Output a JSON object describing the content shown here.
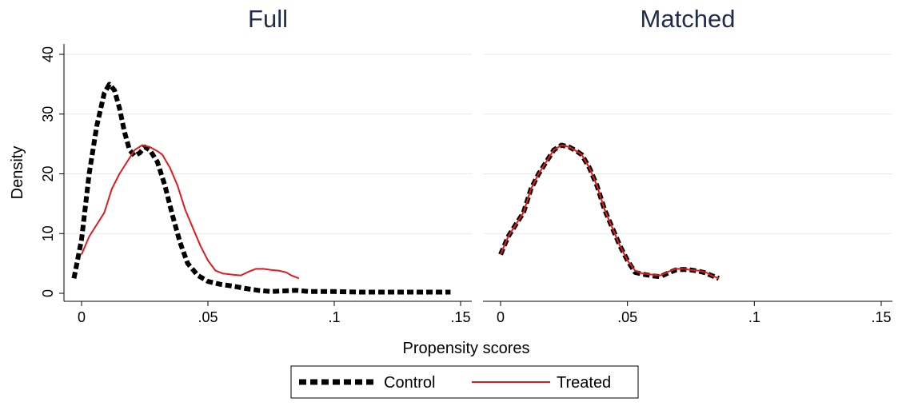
{
  "chart_data": {
    "type": "line",
    "ylabel": "Density",
    "xlabel": "Propensity scores",
    "xlim": [
      -0.005,
      0.15
    ],
    "ylim": [
      0,
      40
    ],
    "xticks": [
      {
        "value": 0,
        "label": "0"
      },
      {
        "value": 0.05,
        "label": ".05"
      },
      {
        "value": 0.1,
        "label": ".1"
      },
      {
        "value": 0.15,
        "label": ".15"
      }
    ],
    "yticks": [
      {
        "value": 0,
        "label": "0"
      },
      {
        "value": 10,
        "label": "10"
      },
      {
        "value": 20,
        "label": "20"
      },
      {
        "value": 30,
        "label": "30"
      },
      {
        "value": 40,
        "label": "40"
      }
    ],
    "grid": true,
    "legend": {
      "position": "bottom",
      "entries": [
        "Control",
        "Treated"
      ]
    },
    "panels": [
      {
        "title": "Full",
        "series": [
          {
            "name": "Control",
            "color": "#000000",
            "style": "dashed-thick",
            "points": [
              [
                -0.003,
                2.5
              ],
              [
                0,
                9
              ],
              [
                0.003,
                20
              ],
              [
                0.006,
                28
              ],
              [
                0.009,
                33.5
              ],
              [
                0.011,
                35
              ],
              [
                0.013,
                34
              ],
              [
                0.015,
                31
              ],
              [
                0.017,
                27
              ],
              [
                0.019,
                24
              ],
              [
                0.021,
                23
              ],
              [
                0.023,
                23.5
              ],
              [
                0.025,
                24.5
              ],
              [
                0.027,
                24
              ],
              [
                0.03,
                22
              ],
              [
                0.033,
                18
              ],
              [
                0.036,
                13
              ],
              [
                0.039,
                8.5
              ],
              [
                0.042,
                5
              ],
              [
                0.046,
                3
              ],
              [
                0.05,
                2
              ],
              [
                0.055,
                1.5
              ],
              [
                0.06,
                1.2
              ],
              [
                0.065,
                0.8
              ],
              [
                0.07,
                0.5
              ],
              [
                0.075,
                0.3
              ],
              [
                0.08,
                0.4
              ],
              [
                0.085,
                0.5
              ],
              [
                0.09,
                0.3
              ],
              [
                0.1,
                0.3
              ],
              [
                0.11,
                0.2
              ],
              [
                0.12,
                0.2
              ],
              [
                0.13,
                0.2
              ],
              [
                0.14,
                0.2
              ],
              [
                0.146,
                0.2
              ]
            ]
          },
          {
            "name": "Treated",
            "color": "#e31a1c",
            "style": "solid",
            "points": [
              [
                0,
                6.5
              ],
              [
                0.003,
                9.5
              ],
              [
                0.006,
                11.5
              ],
              [
                0.009,
                13.5
              ],
              [
                0.012,
                17.5
              ],
              [
                0.015,
                20
              ],
              [
                0.018,
                22
              ],
              [
                0.021,
                24
              ],
              [
                0.024,
                24.8
              ],
              [
                0.027,
                24.5
              ],
              [
                0.03,
                23.8
              ],
              [
                0.032,
                23.2
              ],
              [
                0.035,
                21
              ],
              [
                0.038,
                18
              ],
              [
                0.041,
                14
              ],
              [
                0.044,
                11
              ],
              [
                0.047,
                8
              ],
              [
                0.05,
                5.5
              ],
              [
                0.053,
                3.8
              ],
              [
                0.056,
                3.3
              ],
              [
                0.06,
                3.1
              ],
              [
                0.063,
                3.0
              ],
              [
                0.066,
                3.6
              ],
              [
                0.069,
                4.1
              ],
              [
                0.072,
                4.1
              ],
              [
                0.075,
                3.9
              ],
              [
                0.078,
                3.8
              ],
              [
                0.081,
                3.5
              ],
              [
                0.083,
                3.0
              ],
              [
                0.086,
                2.5
              ]
            ]
          }
        ]
      },
      {
        "title": "Matched",
        "series": [
          {
            "name": "Control",
            "color": "#000000",
            "style": "dashed-thick",
            "points": [
              [
                0,
                6.5
              ],
              [
                0.003,
                9.5
              ],
              [
                0.006,
                11.5
              ],
              [
                0.009,
                13.5
              ],
              [
                0.012,
                17.5
              ],
              [
                0.015,
                20
              ],
              [
                0.018,
                22
              ],
              [
                0.021,
                24
              ],
              [
                0.024,
                24.8
              ],
              [
                0.027,
                24.5
              ],
              [
                0.03,
                23.8
              ],
              [
                0.032,
                23.2
              ],
              [
                0.035,
                21
              ],
              [
                0.038,
                18
              ],
              [
                0.041,
                14
              ],
              [
                0.044,
                11
              ],
              [
                0.047,
                8
              ],
              [
                0.05,
                5.5
              ],
              [
                0.053,
                3.5
              ],
              [
                0.056,
                3.2
              ],
              [
                0.06,
                2.9
              ],
              [
                0.063,
                2.8
              ],
              [
                0.066,
                3.4
              ],
              [
                0.069,
                3.9
              ],
              [
                0.072,
                4.0
              ],
              [
                0.075,
                3.9
              ],
              [
                0.078,
                3.7
              ],
              [
                0.081,
                3.4
              ],
              [
                0.083,
                3.0
              ],
              [
                0.086,
                2.5
              ]
            ]
          },
          {
            "name": "Treated",
            "color": "#e31a1c",
            "style": "solid",
            "points": [
              [
                0,
                6.5
              ],
              [
                0.003,
                9.5
              ],
              [
                0.006,
                11.5
              ],
              [
                0.009,
                13.5
              ],
              [
                0.012,
                17.5
              ],
              [
                0.015,
                20
              ],
              [
                0.018,
                22
              ],
              [
                0.021,
                24
              ],
              [
                0.024,
                24.8
              ],
              [
                0.027,
                24.5
              ],
              [
                0.03,
                23.8
              ],
              [
                0.032,
                23.2
              ],
              [
                0.035,
                21
              ],
              [
                0.038,
                18
              ],
              [
                0.041,
                14
              ],
              [
                0.044,
                11
              ],
              [
                0.047,
                8
              ],
              [
                0.05,
                5.5
              ],
              [
                0.053,
                3.8
              ],
              [
                0.056,
                3.3
              ],
              [
                0.06,
                3.1
              ],
              [
                0.063,
                3.0
              ],
              [
                0.066,
                3.6
              ],
              [
                0.069,
                4.1
              ],
              [
                0.072,
                4.1
              ],
              [
                0.075,
                3.9
              ],
              [
                0.078,
                3.8
              ],
              [
                0.081,
                3.5
              ],
              [
                0.083,
                3.0
              ],
              [
                0.086,
                2.5
              ]
            ]
          }
        ]
      }
    ]
  }
}
